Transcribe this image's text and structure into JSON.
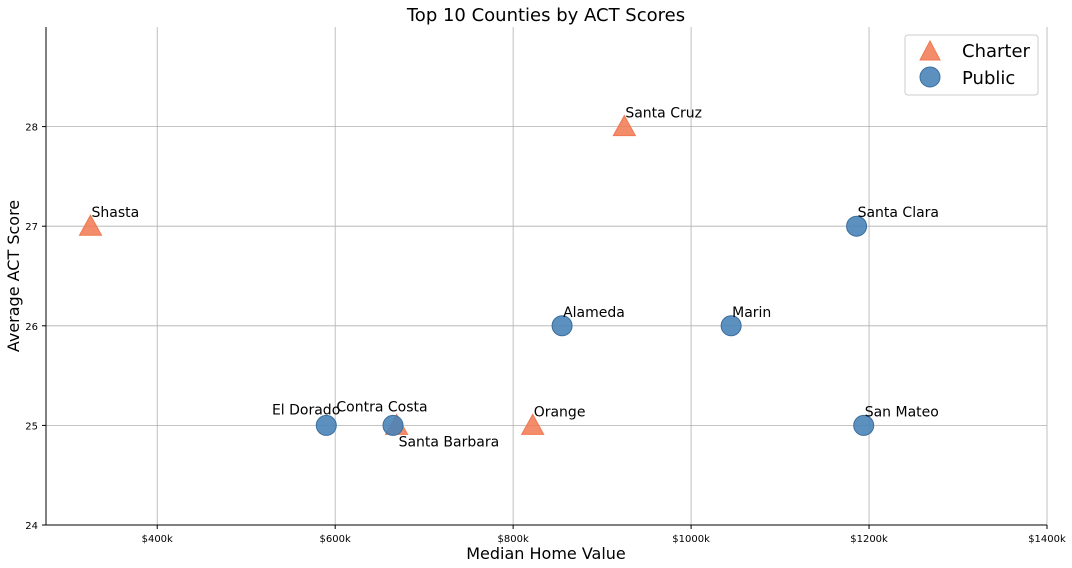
{
  "chart_data": {
    "type": "scatter",
    "title": "Top 10 Counties by ACT Scores",
    "xlabel": "Median Home Value",
    "ylabel": "Average ACT Score",
    "xlim": [
      275000,
      1400000
    ],
    "ylim": [
      24,
      29
    ],
    "x_ticks": [
      {
        "value": 400000,
        "label": "$400k"
      },
      {
        "value": 600000,
        "label": "$600k"
      },
      {
        "value": 800000,
        "label": "$800k"
      },
      {
        "value": 1000000,
        "label": "$1000k"
      },
      {
        "value": 1200000,
        "label": "$1200k"
      },
      {
        "value": 1400000,
        "label": "$1400k"
      }
    ],
    "y_ticks": [
      {
        "value": 24,
        "label": "24"
      },
      {
        "value": 25,
        "label": "25"
      },
      {
        "value": 26,
        "label": "26"
      },
      {
        "value": 27,
        "label": "27"
      },
      {
        "value": 28,
        "label": "28"
      }
    ],
    "grid": true,
    "legend_position": "top-right",
    "series": [
      {
        "name": "Charter",
        "marker": "triangle",
        "color": "#f07850",
        "points": [
          {
            "label": "Shasta",
            "x": 325000,
            "y": 27,
            "label_pos": "above-right"
          },
          {
            "label": "Santa Cruz",
            "x": 925000,
            "y": 28,
            "label_pos": "above-right"
          },
          {
            "label": "Orange",
            "x": 822000,
            "y": 25,
            "label_pos": "above-right"
          },
          {
            "label": "Santa Barbara",
            "x": 669000,
            "y": 25,
            "label_pos": "below-right"
          }
        ]
      },
      {
        "name": "Public",
        "marker": "circle",
        "color": "#4a84b8",
        "points": [
          {
            "label": "Santa Clara",
            "x": 1186000,
            "y": 27,
            "label_pos": "above-right"
          },
          {
            "label": "Alameda",
            "x": 855000,
            "y": 26,
            "label_pos": "above-right"
          },
          {
            "label": "Marin",
            "x": 1045000,
            "y": 26,
            "label_pos": "above-right"
          },
          {
            "label": "El Dorado",
            "x": 590000,
            "y": 25,
            "label_pos": "above-left"
          },
          {
            "label": "Contra Costa",
            "x": 665000,
            "y": 25,
            "label_pos": "above-center"
          },
          {
            "label": "San Mateo",
            "x": 1194000,
            "y": 25,
            "label_pos": "above-right"
          }
        ]
      }
    ]
  }
}
